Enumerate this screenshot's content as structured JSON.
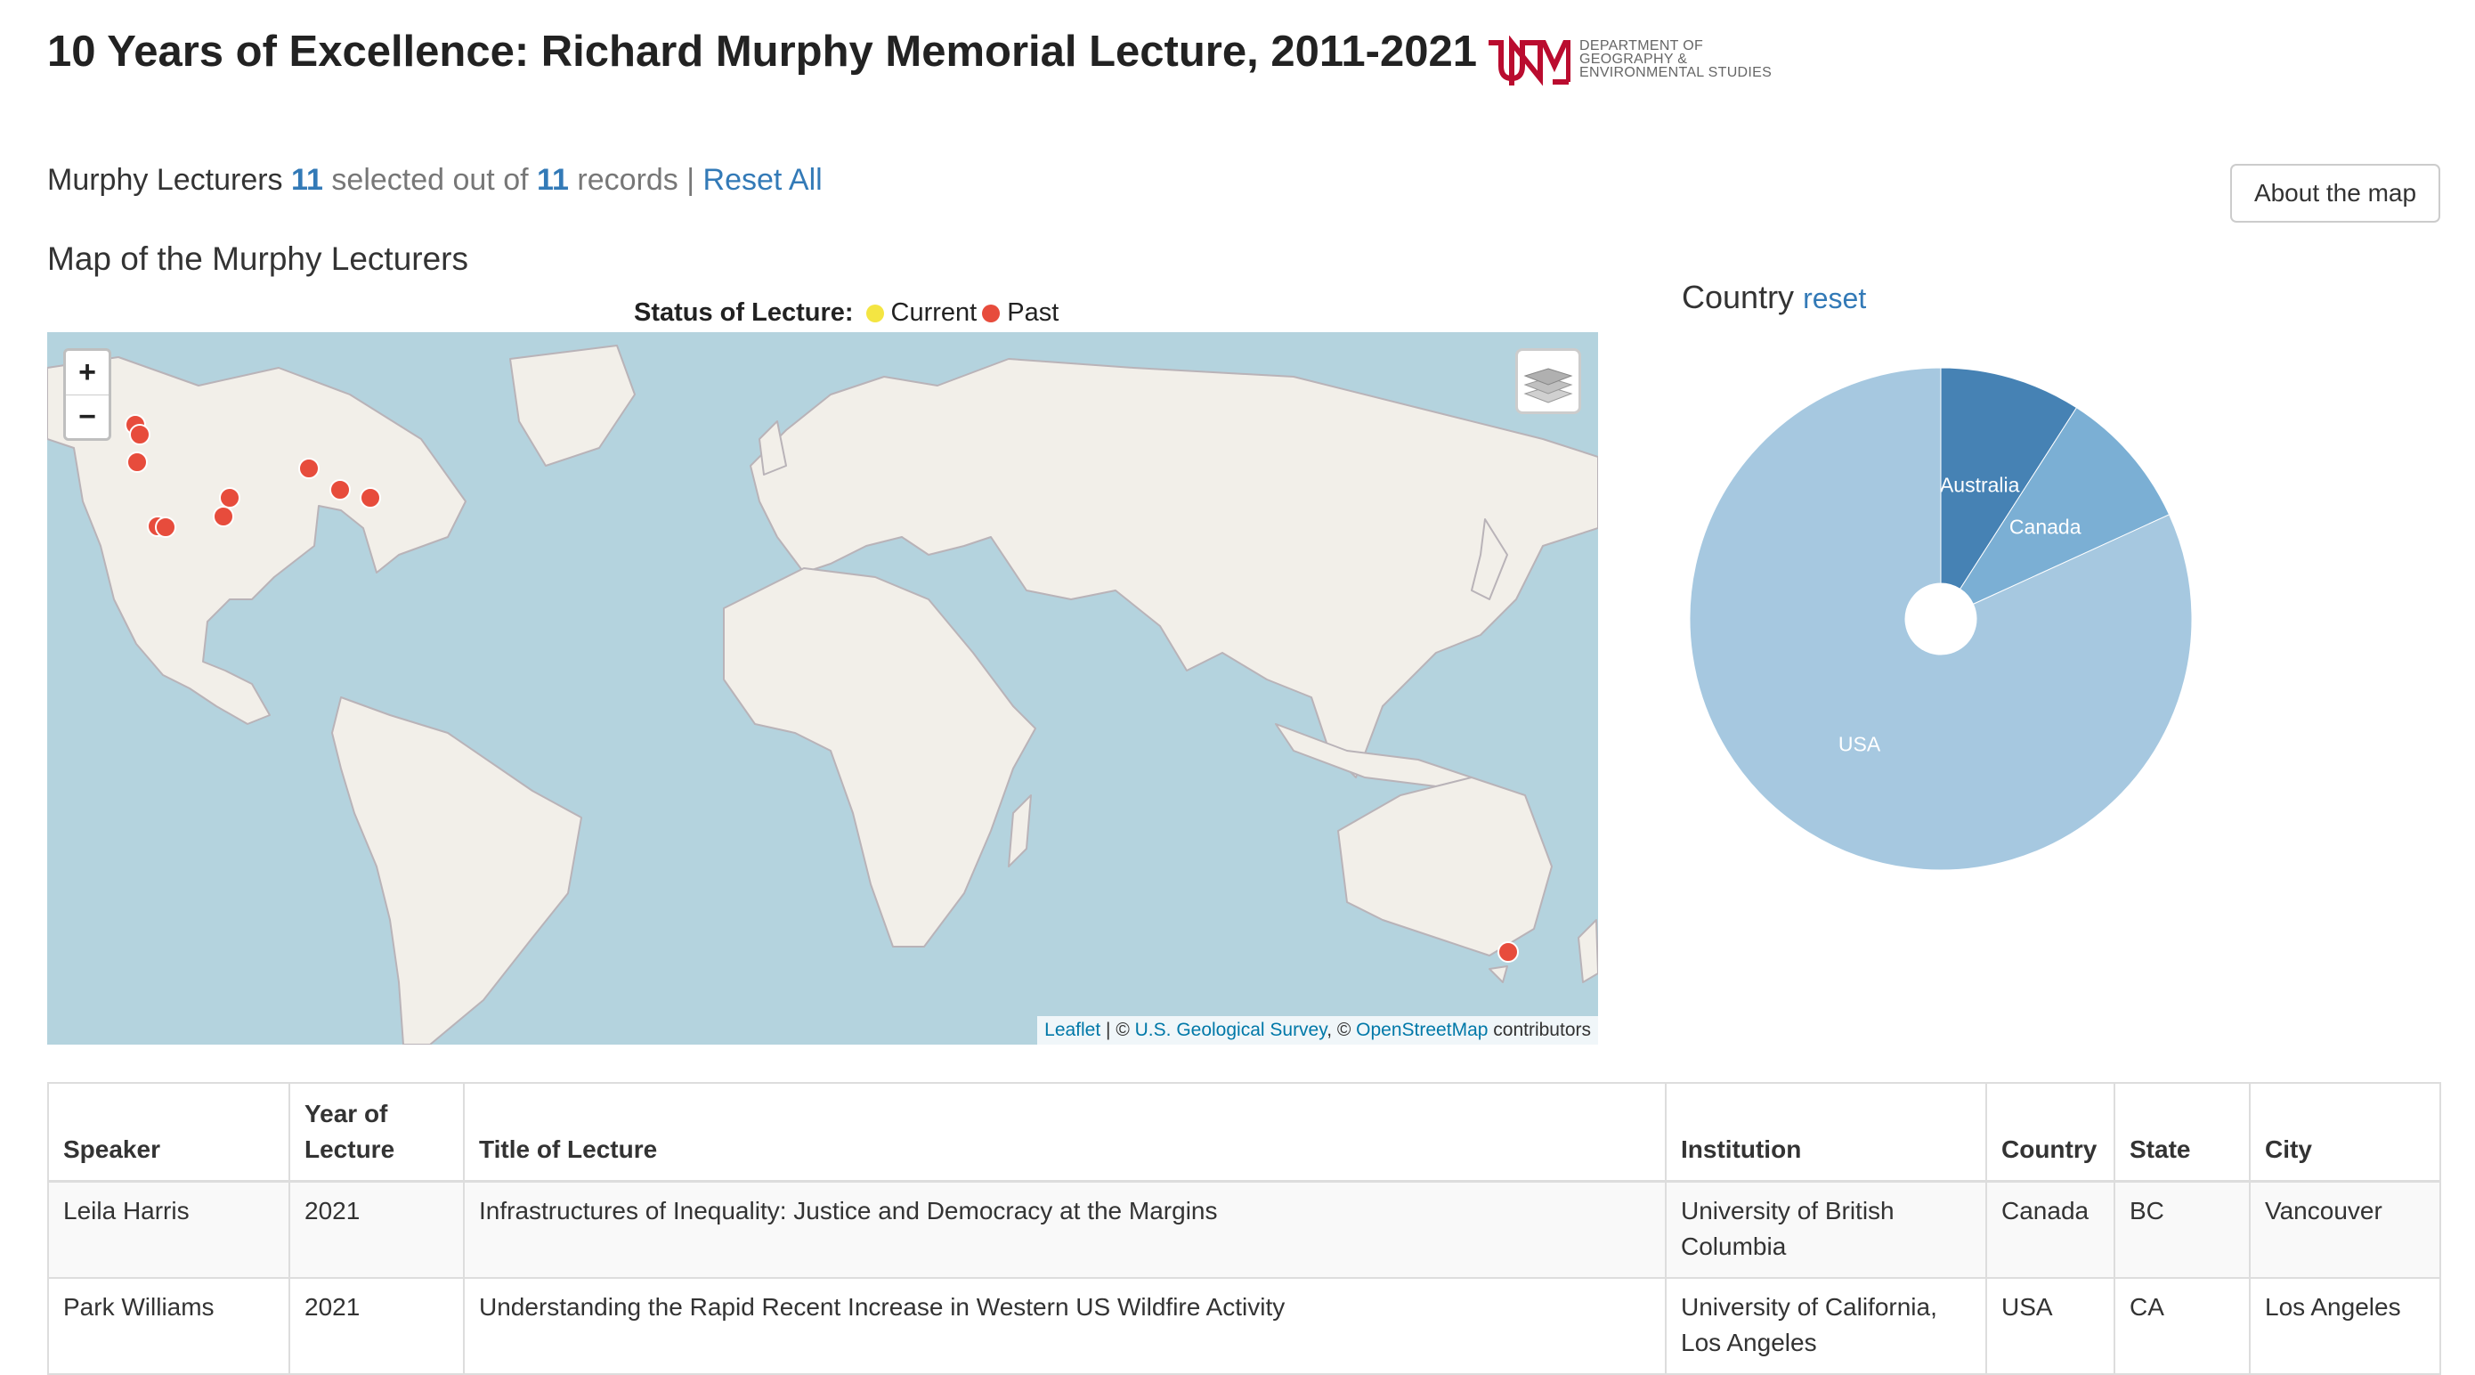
{
  "header": {
    "title": "10 Years of Excellence: Richard Murphy Memorial Lecture, 2011-2021",
    "logo": {
      "name": "unm-logo",
      "dept_lines": [
        "DEPARTMENT OF",
        "GEOGRAPHY &",
        "ENVIRONMENTAL STUDIES"
      ],
      "brand_color": "#ba0c2f"
    }
  },
  "counter": {
    "heading": "Murphy Lecturers",
    "selected": "11",
    "mid_text": "selected out of",
    "total": "11",
    "records_text": "records |",
    "reset_all": "Reset All"
  },
  "about_button": "About the map",
  "map": {
    "heading": "Map of the Murphy Lecturers",
    "legend": {
      "label": "Status of Lecture:",
      "items": [
        {
          "label": "Current",
          "color": "#f4e542"
        },
        {
          "label": "Past",
          "color": "#e74c3c"
        }
      ]
    },
    "zoom_in": "+",
    "zoom_out": "−",
    "attribution": {
      "leaflet": "Leaflet",
      "sep1": " | © ",
      "usgs": "U.S. Geological Survey",
      "sep2": ", © ",
      "osm": "OpenStreetMap",
      "tail": " contributors"
    },
    "colors": {
      "water": "#b4d3de",
      "land": "#f2efe9",
      "border": "#b9b3b8",
      "marker": "#e74c3c"
    }
  },
  "country_chart": {
    "heading": "Country",
    "reset": "reset",
    "colors": {
      "Australia": "#4682b4",
      "Canada": "#7bafd4",
      "USA": "#a6c8e0"
    }
  },
  "table": {
    "headers": [
      "Speaker",
      "Year of Lecture",
      "Title of Lecture",
      "Institution",
      "Country",
      "State",
      "City"
    ],
    "rows": [
      [
        "Leila Harris",
        "2021",
        "Infrastructures of Inequality: Justice and Democracy at the Margins",
        "University of British Columbia",
        "Canada",
        "BC",
        "Vancouver"
      ],
      [
        "Park Williams",
        "2021",
        "Understanding the Rapid Recent Increase in Western US Wildfire Activity",
        "University of California, Los Angeles",
        "USA",
        "CA",
        "Los Angeles"
      ]
    ]
  },
  "chart_data": {
    "type": "pie",
    "title": "",
    "categories": [
      "Australia",
      "Canada",
      "USA"
    ],
    "values": [
      1,
      1,
      9
    ]
  }
}
